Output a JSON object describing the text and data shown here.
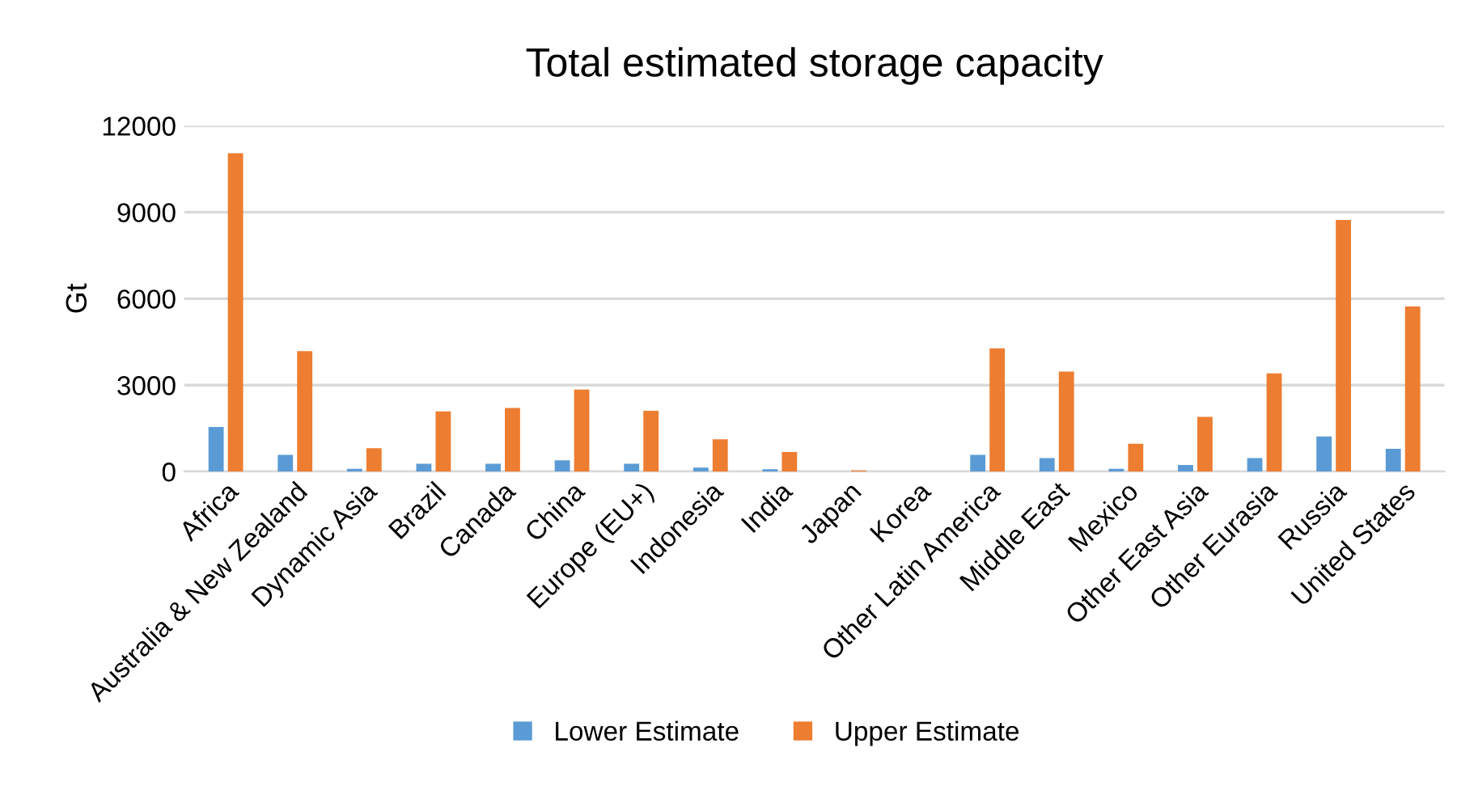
{
  "chart_data": {
    "type": "bar",
    "title": "Total estimated storage capacity",
    "ylabel": "Gt",
    "categories": [
      "Africa",
      "Australia & New Zealand",
      "Dynamic Asia",
      "Brazil",
      "Canada",
      "China",
      "Europe (EU+)",
      "Indonesia",
      "India",
      "Japan",
      "Korea",
      "Other Latin America",
      "Middle East",
      "Mexico",
      "Other East Asia",
      "Other Eurasia",
      "Russia",
      "United States"
    ],
    "series": [
      {
        "name": "Lower Estimate",
        "color": "#5b9bd5",
        "values": [
          1550,
          580,
          100,
          270,
          270,
          390,
          270,
          140,
          80,
          0,
          0,
          580,
          470,
          100,
          230,
          470,
          1220,
          790
        ]
      },
      {
        "name": "Upper Estimate",
        "color": "#ed7d31",
        "values": [
          11050,
          4180,
          810,
          2090,
          2210,
          2850,
          2110,
          1120,
          680,
          40,
          0,
          4280,
          3470,
          970,
          1900,
          3410,
          8730,
          5730
        ]
      }
    ],
    "ylim": [
      0,
      12000
    ],
    "yticks": [
      0,
      3000,
      6000,
      9000,
      12000
    ],
    "grid": "y",
    "legend": "bottom"
  }
}
